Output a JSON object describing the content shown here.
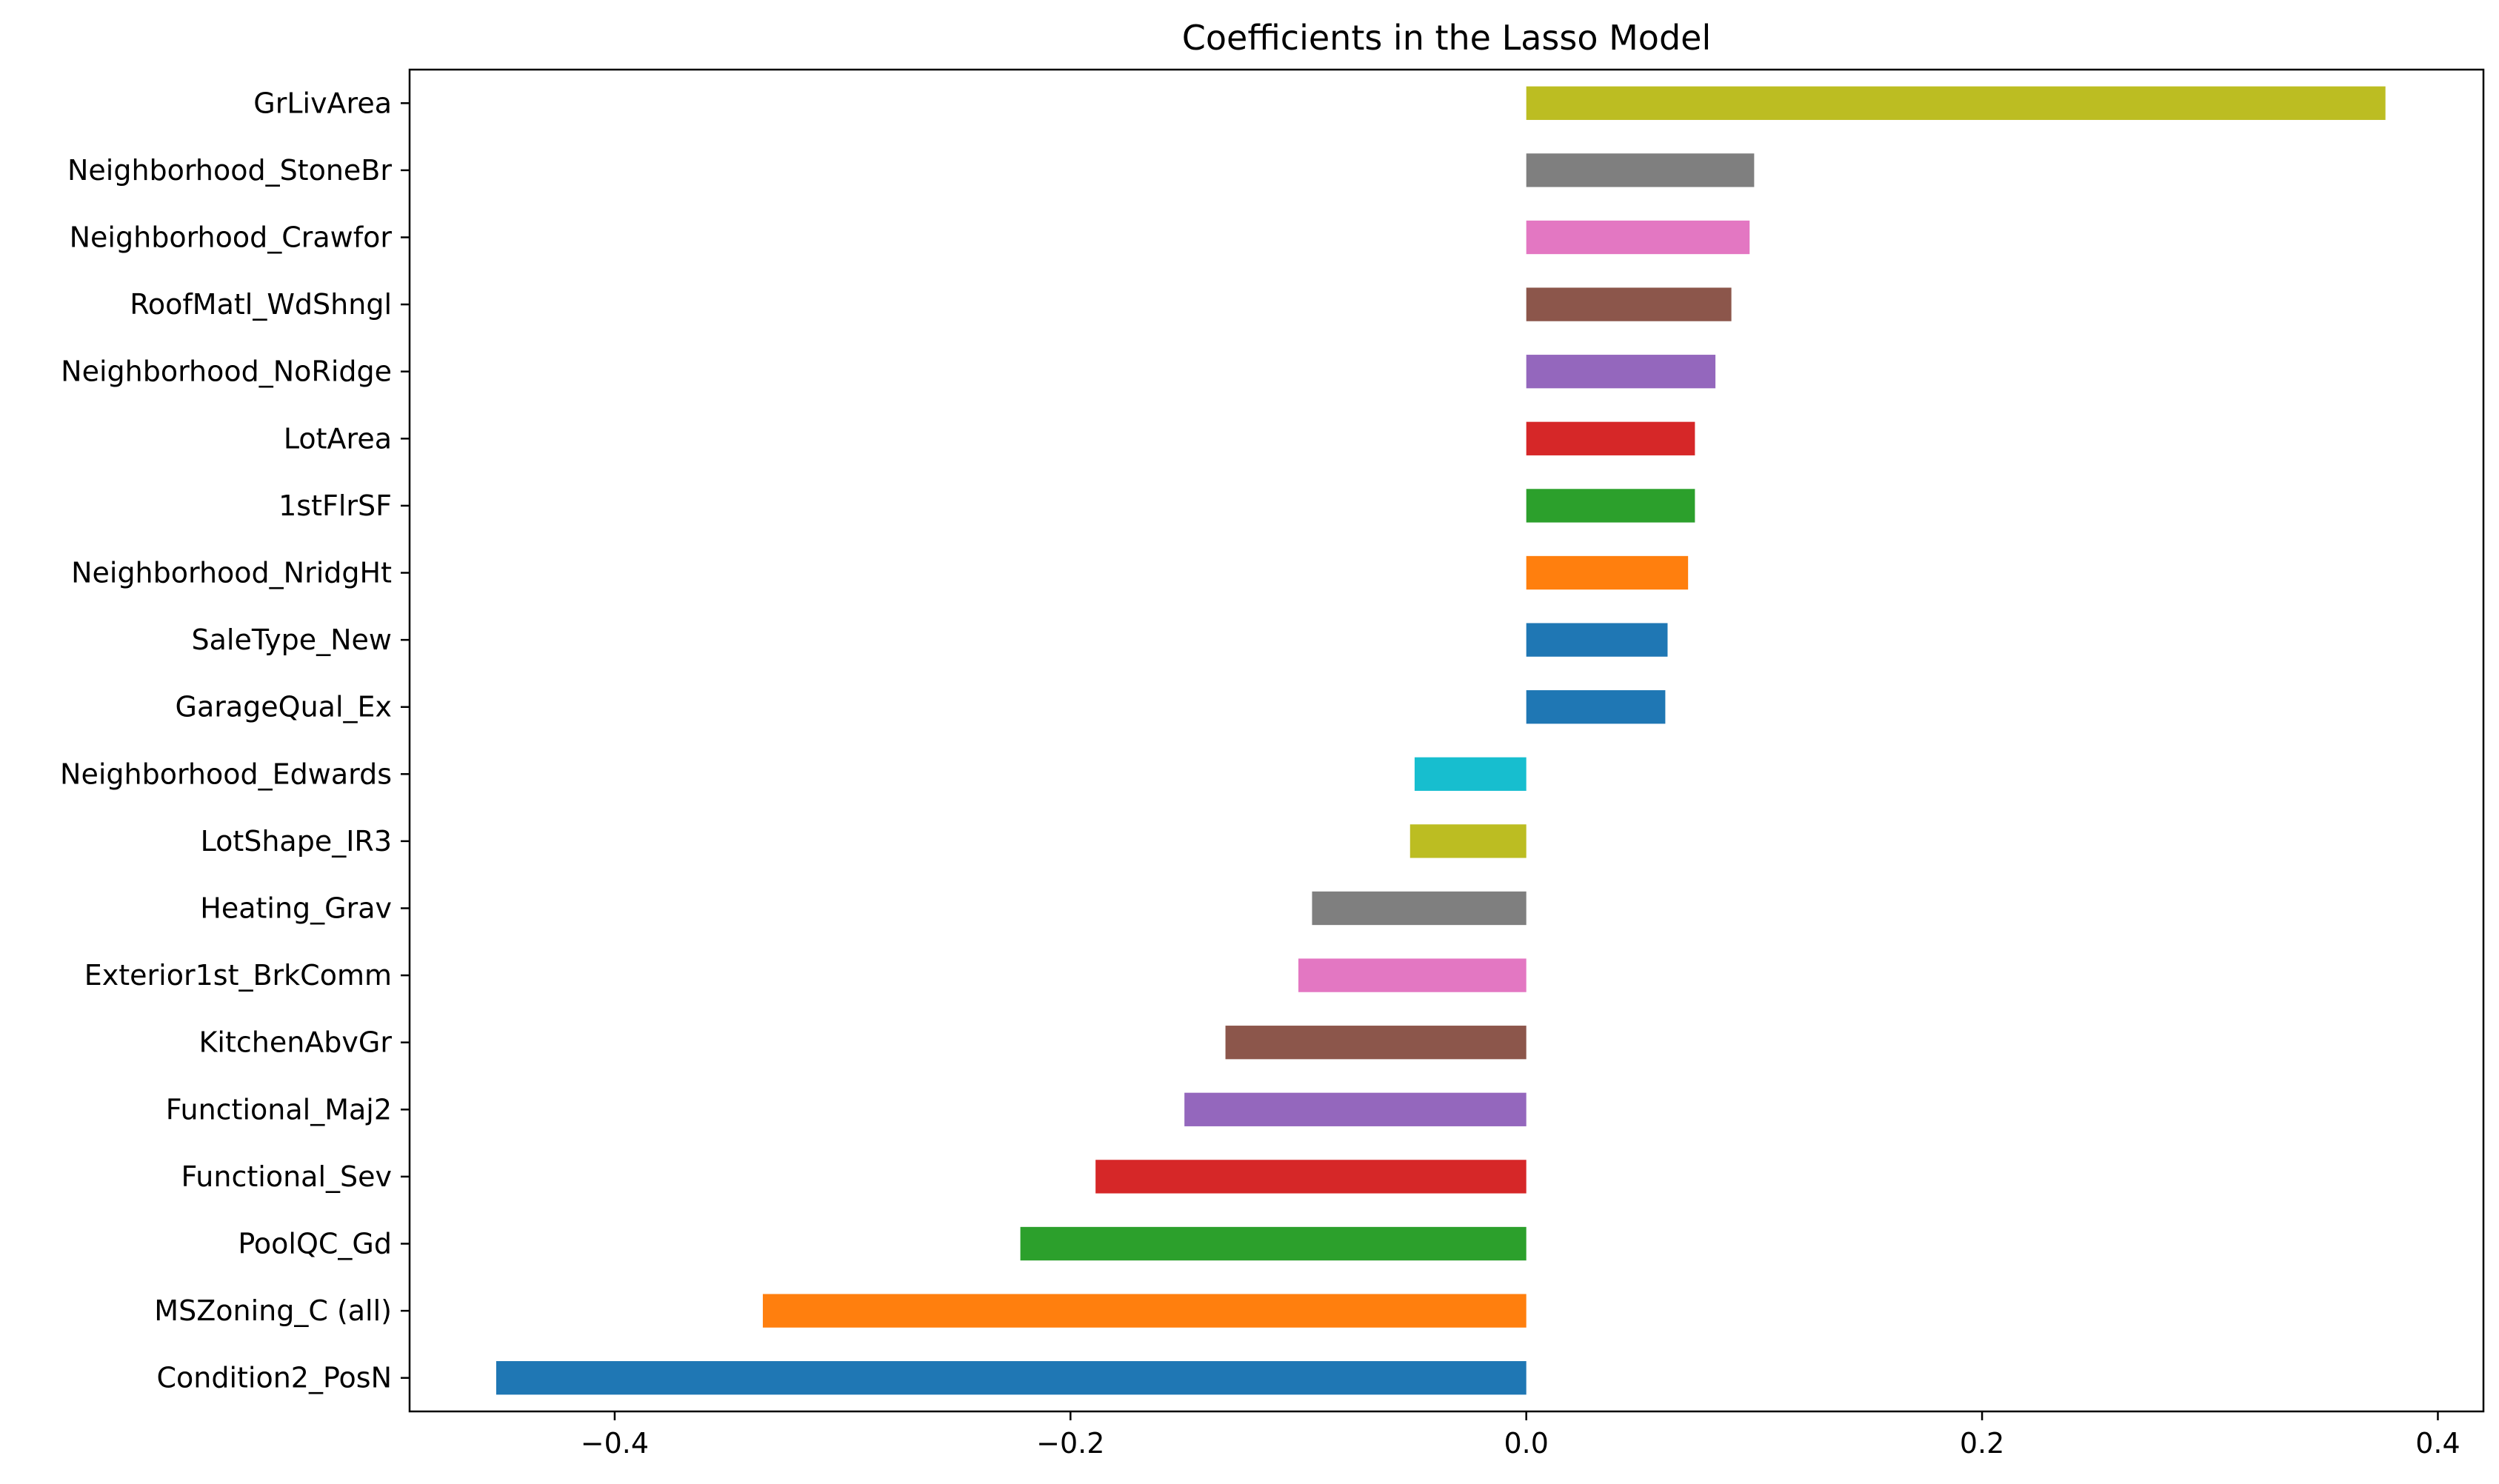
{
  "chart_data": {
    "type": "bar",
    "orientation": "horizontal",
    "title": "Coefficients in the Lasso Model",
    "xlabel": "",
    "ylabel": "",
    "xlim": [
      -0.49,
      0.42
    ],
    "xticks": [
      {
        "value": -0.4,
        "label": "−0.4"
      },
      {
        "value": -0.2,
        "label": "−0.2"
      },
      {
        "value": 0.0,
        "label": "0.0"
      },
      {
        "value": 0.2,
        "label": "0.2"
      },
      {
        "value": 0.4,
        "label": "0.4"
      }
    ],
    "grid": false,
    "legend": "none",
    "categories": [
      "GrLivArea",
      "Neighborhood_StoneBr",
      "Neighborhood_Crawfor",
      "RoofMatl_WdShngl",
      "Neighborhood_NoRidge",
      "LotArea",
      "1stFlrSF",
      "Neighborhood_NridgHt",
      "SaleType_New",
      "GarageQual_Ex",
      "Neighborhood_Edwards",
      "LotShape_IR3",
      "Heating_Grav",
      "Exterior1st_BrkComm",
      "KitchenAbvGr",
      "Functional_Maj2",
      "Functional_Sev",
      "PoolQC_Gd",
      "MSZoning_C (all)",
      "Condition2_PosN"
    ],
    "values": [
      0.377,
      0.1,
      0.098,
      0.09,
      0.083,
      0.074,
      0.074,
      0.071,
      0.062,
      0.061,
      -0.049,
      -0.051,
      -0.094,
      -0.1,
      -0.132,
      -0.15,
      -0.189,
      -0.222,
      -0.335,
      -0.452
    ],
    "colors": [
      "#bcbd22",
      "#7f7f7f",
      "#e377c2",
      "#8c564b",
      "#9467bd",
      "#d62728",
      "#2ca02c",
      "#ff7f0e",
      "#1f77b4",
      "#1f77b4",
      "#17becf",
      "#bcbd22",
      "#7f7f7f",
      "#e377c2",
      "#8c564b",
      "#9467bd",
      "#d62728",
      "#2ca02c",
      "#ff7f0e",
      "#1f77b4"
    ]
  }
}
